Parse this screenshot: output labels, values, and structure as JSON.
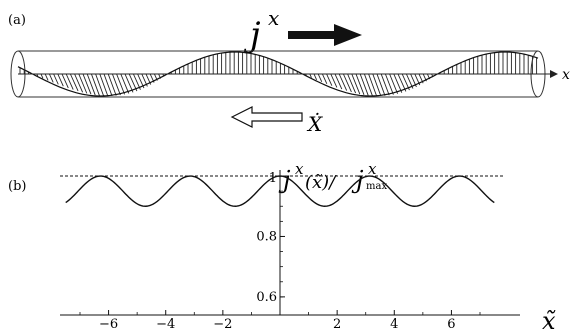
{
  "panel_a": {
    "label": "(a)",
    "current_symbol": "j",
    "current_superscript": "x",
    "axis_label": "x",
    "velocity_label": "Ẋ"
  },
  "panel_b": {
    "label": "(b)",
    "ylabel_main": "j",
    "ylabel_sup": "x",
    "ylabel_arg": "(x̃)/",
    "ylabel_den": "j",
    "ylabel_den_sup": "x",
    "ylabel_den_sub": "max",
    "xlabel": "x̃",
    "chart_data": {
      "type": "line",
      "title": "",
      "xlim": [
        -7.7,
        7.7
      ],
      "ylim": [
        0.54,
        1.02
      ],
      "xticks": [
        -6,
        -4,
        -2,
        2,
        4,
        6
      ],
      "xtick_labels": [
        "−6",
        "−4",
        "−2",
        "2",
        "4",
        "6"
      ],
      "yticks": [
        0.6,
        0.8,
        1
      ],
      "ytick_labels": [
        "0.6",
        "0.8",
        "1"
      ],
      "reference_line": {
        "y": 1,
        "style": "dashed"
      },
      "series": [
        {
          "formula": "0.95 + 0.05*cos(2*x)",
          "x": [
            -7.5,
            -7.0,
            -6.5,
            -6.0,
            -5.5,
            -5.0,
            -4.5,
            -4.0,
            -3.5,
            -3.0,
            -2.5,
            -2.0,
            -1.5,
            -1.0,
            -0.5,
            0.0,
            0.5,
            1.0,
            1.5,
            2.0,
            2.5,
            3.0,
            3.5,
            4.0,
            4.5,
            5.0,
            5.5,
            6.0,
            6.5,
            7.0,
            7.5
          ],
          "y": [
            0.935,
            0.957,
            0.909,
            0.992,
            0.901,
            0.992,
            0.906,
            0.957,
            0.933,
            0.948,
            0.986,
            0.917,
            0.9,
            0.929,
            0.977,
            1.0,
            0.977,
            0.929,
            0.9,
            0.917,
            0.986,
            0.948,
            0.933,
            0.957,
            0.906,
            0.992,
            0.901,
            0.992,
            0.909,
            0.957,
            0.935
          ]
        }
      ]
    }
  }
}
